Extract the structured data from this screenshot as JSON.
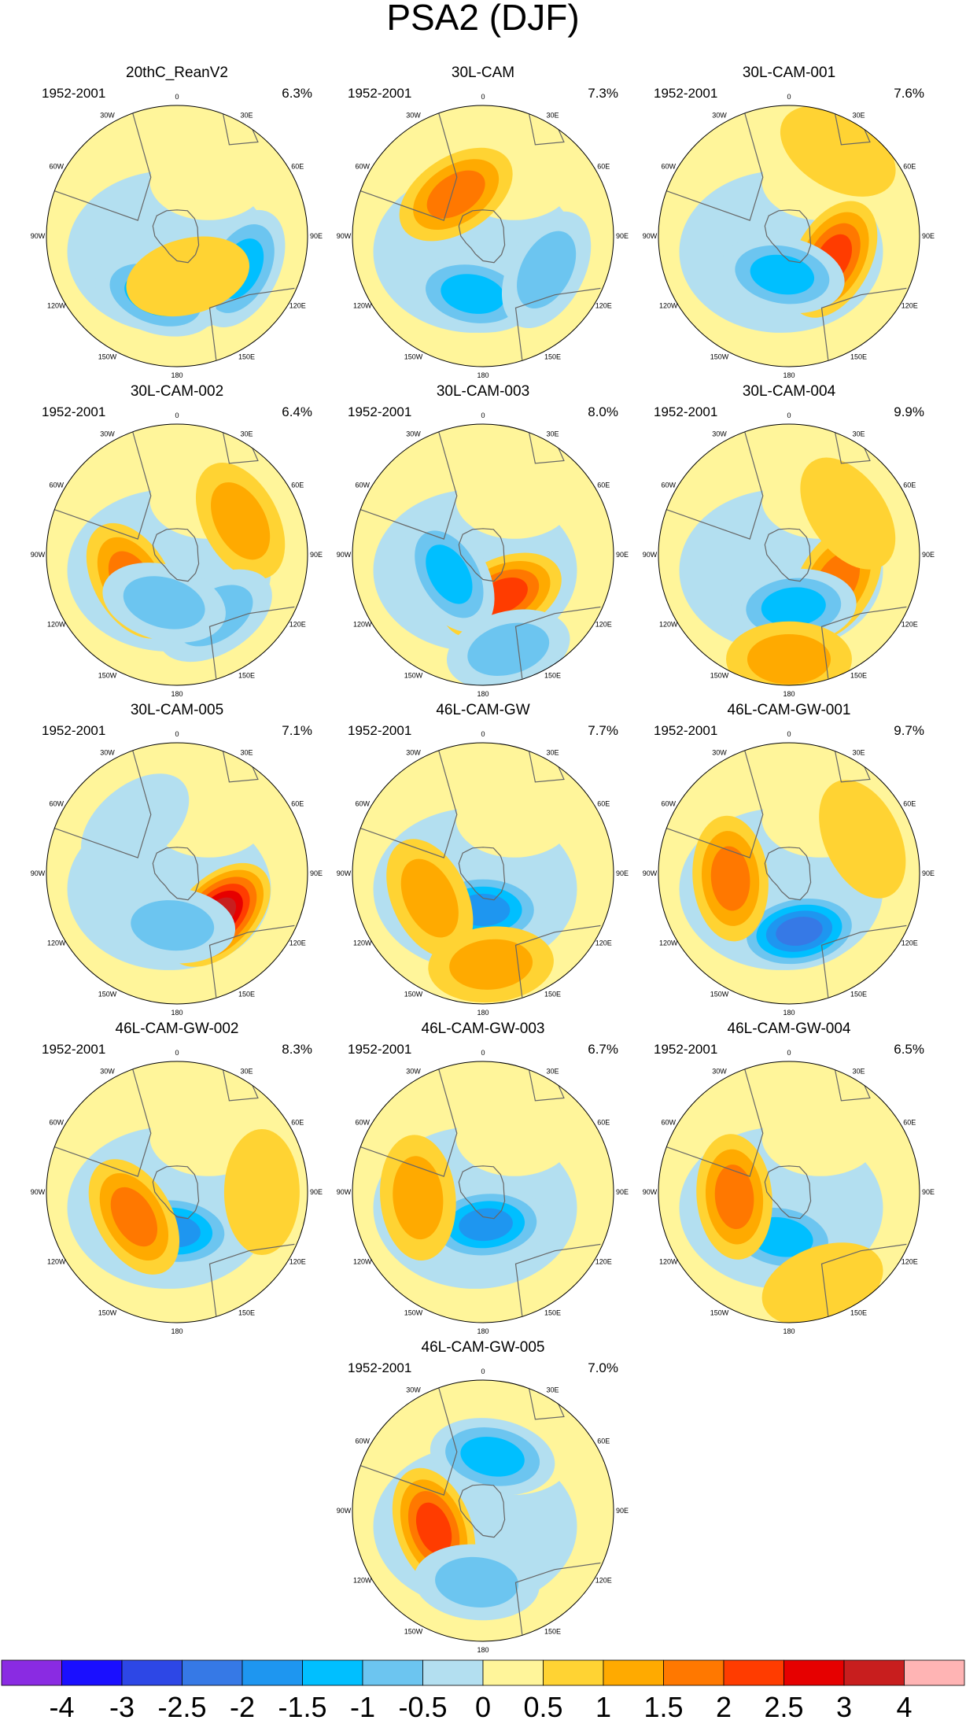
{
  "title": "PSA2 (DJF)",
  "period": "1952-2001",
  "longitude_labels": [
    "0",
    "30E",
    "60E",
    "90E",
    "120E",
    "150E",
    "180",
    "150W",
    "120W",
    "90W",
    "60W",
    "30W"
  ],
  "panels": [
    {
      "name": "20thC_ReanV2",
      "pct": "6.3%",
      "centers": [
        [
          -1.5,
          0.55,
          117
        ],
        [
          -1.5,
          0.48,
          200
        ],
        [
          0.5,
          0.32,
          165
        ]
      ]
    },
    {
      "name": "30L-CAM",
      "pct": "7.3%",
      "centers": [
        [
          1.5,
          0.38,
          327
        ],
        [
          -1.5,
          0.45,
          190
        ],
        [
          -1,
          0.55,
          118
        ]
      ]
    },
    {
      "name": "30L-CAM-001",
      "pct": "7.6%",
      "centers": [
        [
          2,
          0.38,
          118
        ],
        [
          -1.5,
          0.3,
          190
        ],
        [
          0.5,
          0.75,
          30
        ]
      ]
    },
    {
      "name": "30L-CAM-002",
      "pct": "6.4%",
      "centers": [
        [
          1,
          0.55,
          62
        ],
        [
          -1,
          0.55,
          148
        ],
        [
          1.5,
          0.4,
          240
        ],
        [
          -1,
          0.38,
          195
        ]
      ]
    },
    {
      "name": "30L-CAM-003",
      "pct": "8.0%",
      "centers": [
        [
          2,
          0.35,
          155
        ],
        [
          -1.5,
          0.3,
          240
        ],
        [
          -1,
          0.75,
          165
        ]
      ]
    },
    {
      "name": "30L-CAM-004",
      "pct": "9.9%",
      "centers": [
        [
          1.5,
          0.42,
          120
        ],
        [
          -1.5,
          0.4,
          175
        ],
        [
          0.5,
          0.55,
          55
        ],
        [
          1,
          0.8,
          180
        ]
      ]
    },
    {
      "name": "30L-CAM-005",
      "pct": "7.1%",
      "centers": [
        [
          3,
          0.45,
          135
        ],
        [
          -1,
          0.4,
          185
        ],
        [
          -0.5,
          0.5,
          320
        ]
      ]
    },
    {
      "name": "46L-CAM-GW",
      "pct": "7.7%",
      "centers": [
        [
          -2,
          0.28,
          180
        ],
        [
          1,
          0.45,
          245
        ],
        [
          1,
          0.7,
          175
        ]
      ]
    },
    {
      "name": "46L-CAM-GW-001",
      "pct": "9.7%",
      "centers": [
        [
          -2.5,
          0.45,
          170
        ],
        [
          1.5,
          0.45,
          265
        ],
        [
          0.5,
          0.62,
          65
        ]
      ]
    },
    {
      "name": "46L-CAM-GW-002",
      "pct": "8.3%",
      "centers": [
        [
          -2,
          0.3,
          185
        ],
        [
          1.5,
          0.38,
          240
        ],
        [
          0.5,
          0.65,
          90
        ]
      ]
    },
    {
      "name": "46L-CAM-GW-003",
      "pct": "6.7%",
      "centers": [
        [
          -2,
          0.25,
          175
        ],
        [
          1,
          0.5,
          265
        ]
      ]
    },
    {
      "name": "46L-CAM-GW-004",
      "pct": "6.5%",
      "centers": [
        [
          -1.5,
          0.35,
          190
        ],
        [
          1.5,
          0.42,
          265
        ],
        [
          0.5,
          0.75,
          160
        ]
      ]
    },
    {
      "name": "46L-CAM-GW-005",
      "pct": "7.0%",
      "centers": [
        [
          2,
          0.4,
          250
        ],
        [
          -1.5,
          0.42,
          10
        ],
        [
          -1,
          0.55,
          185
        ]
      ]
    }
  ],
  "colorbar": {
    "labels": [
      "-4",
      "-3",
      "-2.5",
      "-2",
      "-1.5",
      "-1",
      "-0.5",
      "0",
      "0.5",
      "1",
      "1.5",
      "2",
      "2.5",
      "3",
      "4"
    ],
    "colors": [
      "#8a2be2",
      "#1a0fff",
      "#2d47e6",
      "#3679e6",
      "#1e96f0",
      "#00bfff",
      "#6cc5f0",
      "#b3dff0",
      "#fff59a",
      "#ffd333",
      "#ffaa00",
      "#ff7800",
      "#ff3c00",
      "#e60000",
      "#c81e1e",
      "#ffb4b4"
    ]
  }
}
